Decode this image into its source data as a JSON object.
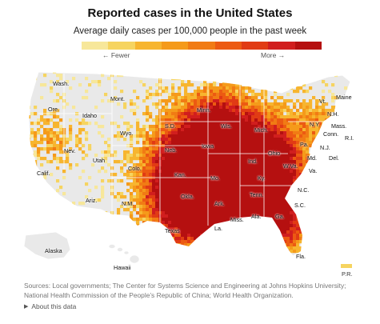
{
  "title": "Reported cases in the United States",
  "subtitle": "Average daily cases per 100,000 people in the past week",
  "legend": {
    "fewer": "← Fewer",
    "more": "More →",
    "colors": [
      "#f7e79a",
      "#f6d460",
      "#f7b52f",
      "#f59a1a",
      "#f17b14",
      "#ec5a12",
      "#e13b14",
      "#d11e1e",
      "#b51010"
    ]
  },
  "labels": {
    "wash": "Wash.",
    "ore": "Ore.",
    "idaho": "Idaho",
    "mont": "Mont.",
    "wyo": "Wyo.",
    "nev": "Nev.",
    "utah": "Utah",
    "calif": "Calif.",
    "colo": "Colo.",
    "ariz": "Ariz.",
    "nm": "N.M.",
    "sd": "S.D.",
    "neb": "Neb.",
    "kan": "Kan.",
    "okla": "Okla.",
    "texas": "Texas",
    "minn": "Minn.",
    "wis": "Wis.",
    "iowa": "Iowa",
    "mo": "Mo.",
    "ark": "Ark.",
    "la": "La.",
    "miss": "Miss.",
    "ala": "Ala.",
    "tenn": "Tenn.",
    "ky": "Ky.",
    "ind": "Ind.",
    "ohio": "Ohio",
    "mich": "Mich.",
    "wva": "W.Va.",
    "va": "Va.",
    "nc": "N.C.",
    "sc": "S.C.",
    "ga": "Ga.",
    "fla": "Fla.",
    "pa": "Pa.",
    "ny": "N.Y.",
    "nj": "N.J.",
    "md": "Md.",
    "del": "Del.",
    "vt": "Vt.",
    "nh": "N.H.",
    "maine": "Maine",
    "mass": "Mass.",
    "conn": "Conn.",
    "ri": "R.I.",
    "alaska": "Alaska",
    "hawaii": "Hawaii",
    "pr": "P.R."
  },
  "sources": "Sources: Local governments; The Center for Systems Science and Engineering at Johns Hopkins University; National Health Commission of the People’s Republic of China; World Health Organization.",
  "about": "About this data"
}
